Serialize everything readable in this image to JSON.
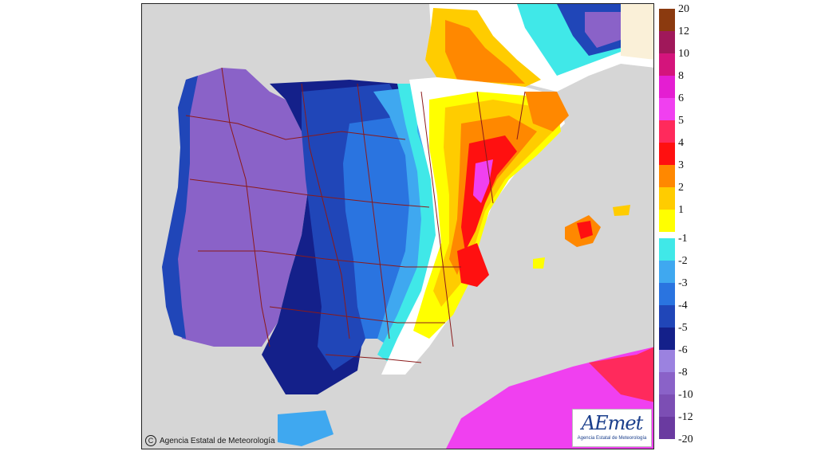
{
  "copyright": {
    "symbol": "C",
    "text": "Agencia Estatal de Meteorología"
  },
  "logo": {
    "mark": "AEmet",
    "subtitle": "Agencia Estatal de Meteorología"
  },
  "legend": {
    "warm": [
      {
        "label": "20",
        "color": "#8b3a0f"
      },
      {
        "label": "12",
        "color": "#a0185a"
      },
      {
        "label": "10",
        "color": "#d4147c"
      },
      {
        "label": "8",
        "color": "#e41ed2"
      },
      {
        "label": "6",
        "color": "#f040f0"
      },
      {
        "label": "5",
        "color": "#ff2a5c"
      },
      {
        "label": "4",
        "color": "#ff1010"
      },
      {
        "label": "3",
        "color": "#ff8800"
      },
      {
        "label": "2",
        "color": "#ffcc00"
      },
      {
        "label": "1",
        "color": "#ffff00"
      }
    ],
    "cold": [
      {
        "label": "-1",
        "color": "#40e8e8"
      },
      {
        "label": "-2",
        "color": "#3fa8f0"
      },
      {
        "label": "-3",
        "color": "#2a74e0"
      },
      {
        "label": "-4",
        "color": "#2046b8"
      },
      {
        "label": "-5",
        "color": "#14208a"
      },
      {
        "label": "-6",
        "color": "#9b82e0"
      },
      {
        "label": "-8",
        "color": "#8a62c8"
      },
      {
        "label": "-10",
        "color": "#7c4eb4"
      },
      {
        "label": "-12",
        "color": "#6a3aa0"
      }
    ],
    "bottom_label": "-20"
  }
}
